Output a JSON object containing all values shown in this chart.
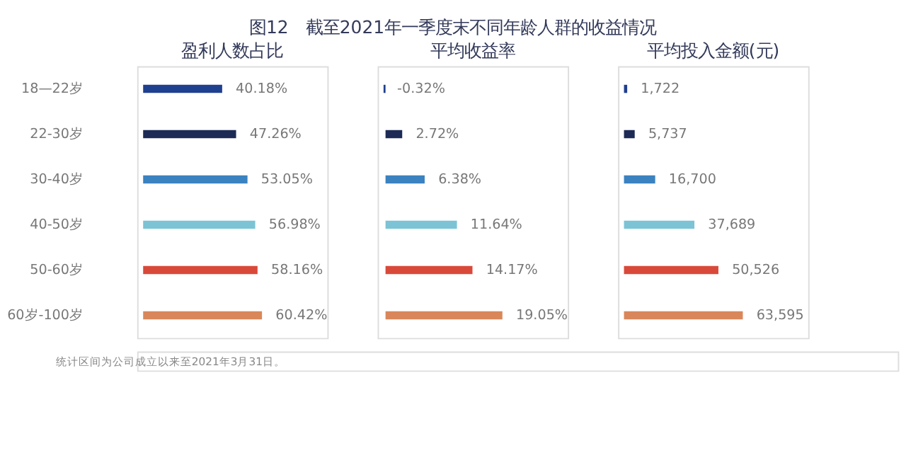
{
  "chart_data": [
    {
      "type": "bar",
      "orientation": "horizontal",
      "title": "盈利人数占比",
      "annotations": [
        "图12　截至2021年一季度末不同年龄人群的收益情况",
        "统计区间为公司成立以来至2021年3月31日。"
      ],
      "categories": [
        "18—22岁",
        "22-30岁",
        "30-40岁",
        "40-50岁",
        "50-60岁",
        "60岁-100岁"
      ],
      "values": [
        40.18,
        47.26,
        53.05,
        56.98,
        58.16,
        60.42
      ],
      "value_labels": [
        "40.18%",
        "47.26%",
        "53.05%",
        "56.98%",
        "58.16%",
        "60.42%"
      ],
      "colors": [
        "#1f3f8f",
        "#1c2a55",
        "#3a82c0",
        "#7cc3d6",
        "#d9493a",
        "#d9875a"
      ],
      "tick_labels": "y",
      "grid": false
    },
    {
      "type": "bar",
      "orientation": "horizontal",
      "title": "平均收益率",
      "categories": [
        null,
        null,
        null,
        null,
        null,
        null
      ],
      "values": [
        -0.32,
        2.72,
        6.38,
        11.64,
        14.17,
        19.05
      ],
      "value_labels": [
        "-0.32%",
        "2.72%",
        "6.38%",
        "11.64%",
        "14.17%",
        "19.05%"
      ],
      "colors": [
        "#1f3f8f",
        "#1c2a55",
        "#3a82c0",
        "#7cc3d6",
        "#d9493a",
        "#d9875a"
      ],
      "tick_labels": false,
      "grid": false
    },
    {
      "type": "bar",
      "orientation": "horizontal",
      "title": "平均投入金额(元)",
      "categories": [
        null,
        null,
        null,
        null,
        null,
        null
      ],
      "values": [
        1722,
        5737,
        16700,
        37689,
        50526,
        63595
      ],
      "value_labels": [
        "1,722",
        "5,737",
        "16,700",
        "37,689",
        "50,526",
        "63,595"
      ],
      "colors": [
        "#1f3f8f",
        "#1c2a55",
        "#3a82c0",
        "#7cc3d6",
        "#d9493a",
        "#d9875a"
      ],
      "tick_labels": false,
      "grid": false
    }
  ]
}
